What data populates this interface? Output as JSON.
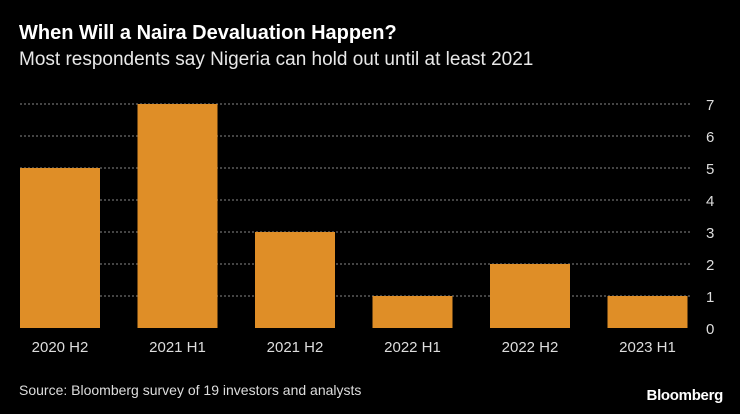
{
  "chart_data": {
    "type": "bar",
    "title": "When Will a Naira Devaluation Happen?",
    "subtitle": "Most respondents say Nigeria can hold out until at least 2021",
    "categories": [
      "2020 H2",
      "2021 H1",
      "2021 H2",
      "2022 H1",
      "2022 H2",
      "2023 H1"
    ],
    "values": [
      5,
      7,
      3,
      1,
      2,
      1
    ],
    "xlabel": "",
    "ylabel": "",
    "ylim": [
      0,
      7
    ],
    "yticks": [
      0,
      1,
      2,
      3,
      4,
      5,
      6,
      7
    ],
    "grid": true,
    "y_axis_side": "right",
    "bar_color": "#df8e27",
    "background": "#000000"
  },
  "footer": {
    "source": "Source: Bloomberg survey of 19 investors and analysts",
    "logo": "Bloomberg"
  }
}
